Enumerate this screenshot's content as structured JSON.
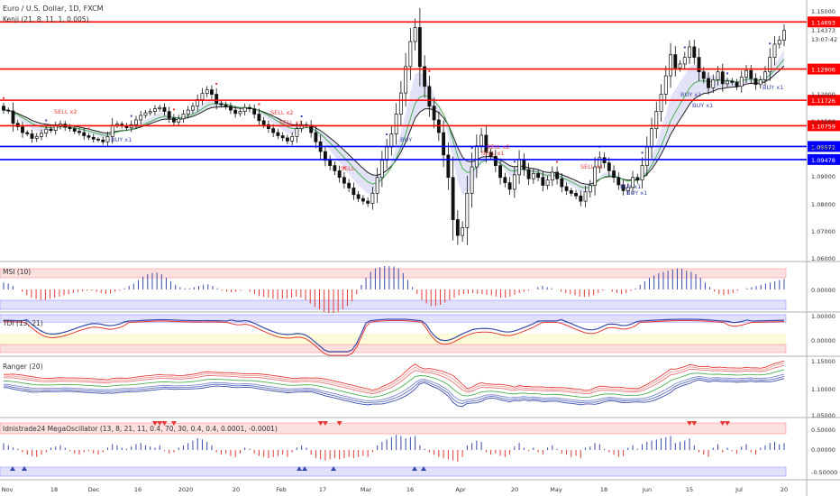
{
  "header": {
    "title": "Euro / U.S. Dollar, 1D, FXCM",
    "indicator": "Kenji (21, 8, 11, 1, 0.005)"
  },
  "price_axis": {
    "labels": [
      "1.15000",
      "1.14373",
      "13:07:42",
      "1.12000",
      "1.11500",
      "1.10000",
      "1.09000",
      "1.08000",
      "1.07000",
      "1.06000"
    ]
  },
  "x_axis": {
    "labels": [
      "Nov",
      "18",
      "Dec",
      "16",
      "2020",
      "20",
      "Feb",
      "17",
      "Mar",
      "16",
      "Apr",
      "20",
      "May",
      "18",
      "Jun",
      "15",
      "Jul",
      "20"
    ]
  },
  "levels": [
    {
      "value": 1.14693,
      "label": "1.14693",
      "color": "#ff0000"
    },
    {
      "value": 1.12906,
      "label": "1.12906",
      "color": "#ff0000"
    },
    {
      "value": 1.11726,
      "label": "1.11726",
      "color": "#ff0000"
    },
    {
      "value": 1.10759,
      "label": "1.10759",
      "color": "#ff0000"
    },
    {
      "value": 1.09972,
      "label": "1.09972",
      "color": "#0000ff"
    },
    {
      "value": 1.09478,
      "label": "1.09478",
      "color": "#0000ff"
    }
  ],
  "signals": [
    {
      "text": "SELL x2",
      "color": "#e53935"
    },
    {
      "text": "BUY x1",
      "color": "#3949ab"
    },
    {
      "text": "SELL x2",
      "color": "#e53935"
    },
    {
      "text": "SELL x1",
      "color": "#e53935"
    },
    {
      "text": "SELL",
      "color": "#e53935"
    },
    {
      "text": "BUY",
      "color": "#3949ab"
    },
    {
      "text": "SELL x2",
      "color": "#e53935"
    },
    {
      "text": "SELL x1",
      "color": "#e53935"
    },
    {
      "text": "SELL x1",
      "color": "#e53935"
    },
    {
      "text": "BUY x1",
      "color": "#3949ab"
    },
    {
      "text": "BUY x1",
      "color": "#3949ab"
    },
    {
      "text": "BUY x1",
      "color": "#3949ab"
    },
    {
      "text": "BUY x1",
      "color": "#3949ab"
    },
    {
      "text": "BUY x1",
      "color": "#3949ab"
    }
  ],
  "panels": {
    "msi": {
      "title": "MSI (10)",
      "zero_label": "0.00000"
    },
    "tdi": {
      "title": "TDI (13, 21)",
      "top_label": "1.00000",
      "zero_label": "0.00000"
    },
    "ranger": {
      "title": "Ranger (20)",
      "labels": [
        "1.15000",
        "1.10000",
        "1.05000"
      ]
    },
    "mega": {
      "title": "Idnistrade24 MegaOscillator (13, 8, 21, 11, 0.4, 70, 30, 0.4, 0.4, 0.0001, -0.0001)",
      "labels": [
        "0.50000",
        "0.00000",
        "-0.50000"
      ]
    }
  },
  "chart_data": {
    "type": "candlestick",
    "title": "Euro / U.S. Dollar, 1D, FXCM",
    "ylim": [
      1.0575,
      1.1525
    ],
    "close": [
      1.1135,
      1.1132,
      1.1085,
      1.1072,
      1.105,
      1.1045,
      1.1028,
      1.1035,
      1.1048,
      1.1063,
      1.1058,
      1.1075,
      1.1082,
      1.107,
      1.1065,
      1.1055,
      1.105,
      1.1038,
      1.1032,
      1.1025,
      1.1022,
      1.1015,
      1.1035,
      1.1078,
      1.1082,
      1.1075,
      1.1068,
      1.108,
      1.1098,
      1.1115,
      1.1125,
      1.113,
      1.114,
      1.1145,
      1.113,
      1.1105,
      1.109,
      1.1102,
      1.112,
      1.1135,
      1.115,
      1.1175,
      1.1198,
      1.1212,
      1.1195,
      1.116,
      1.1155,
      1.115,
      1.1135,
      1.1122,
      1.113,
      1.1145,
      1.114,
      1.112,
      1.1095,
      1.108,
      1.1065,
      1.105,
      1.1038,
      1.103,
      1.1018,
      1.1035,
      1.1065,
      1.108,
      1.1078,
      1.105,
      1.1015,
      1.0978,
      1.0945,
      1.0925,
      1.0905,
      1.088,
      1.0858,
      1.084,
      1.0815,
      1.08,
      1.079,
      1.0782,
      1.082,
      1.088,
      1.0945,
      1.0995,
      1.1045,
      1.112,
      1.12,
      1.13,
      1.1395,
      1.1448,
      1.13,
      1.1225,
      1.115,
      1.1098,
      1.105,
      1.0965,
      1.088,
      1.072,
      1.066,
      1.069,
      1.082,
      1.092,
      1.1,
      1.104,
      1.0975,
      1.096,
      1.0925,
      1.088,
      1.086,
      1.0835,
      1.089,
      1.0948,
      1.091,
      1.0875,
      1.0895,
      1.088,
      1.085,
      1.087,
      1.09,
      1.0875,
      1.0845,
      1.083,
      1.082,
      1.081,
      1.079,
      1.0825,
      1.085,
      1.092,
      1.0955,
      1.0935,
      1.0905,
      1.088,
      1.0852,
      1.083,
      1.0842,
      1.088,
      1.087,
      1.0925,
      1.0995,
      1.1065,
      1.113,
      1.1195,
      1.1265,
      1.1345,
      1.1295,
      1.131,
      1.1335,
      1.1375,
      1.1335,
      1.128,
      1.1255,
      1.122,
      1.125,
      1.128,
      1.1235,
      1.1245,
      1.124,
      1.1225,
      1.126,
      1.1285,
      1.1255,
      1.1232,
      1.125,
      1.128,
      1.1335,
      1.1385,
      1.14,
      1.1437
    ],
    "series": [
      {
        "name": "MSI (10)",
        "values": [
          0.3,
          0.25,
          0.15,
          0,
          -0.1,
          -0.25,
          -0.35,
          -0.4,
          -0.45,
          -0.45,
          -0.4,
          -0.35,
          -0.3,
          -0.25,
          -0.2,
          -0.15,
          -0.1,
          -0.08,
          -0.05,
          -0.05,
          -0.1,
          -0.15,
          -0.2,
          -0.18,
          -0.1,
          -0.05,
          0.05,
          0.15,
          0.25,
          0.4,
          0.55,
          0.65,
          0.7,
          0.72,
          0.65,
          0.5,
          0.35,
          0.2,
          0.1,
          0.05,
          0.05,
          0.1,
          0.15,
          0.2,
          0.22,
          0.15,
          0.05,
          -0.05,
          -0.1,
          -0.12,
          -0.1,
          -0.05,
          0,
          -0.1,
          -0.2,
          -0.28,
          -0.32,
          -0.35,
          -0.4,
          -0.42,
          -0.4,
          -0.38,
          -0.35,
          -0.3,
          -0.35,
          -0.45,
          -0.6,
          -0.75,
          -0.85,
          -0.95,
          -1.0,
          -1.0,
          -0.95,
          -0.85,
          -0.7,
          -0.5,
          -0.2,
          0.2,
          0.5,
          0.75,
          0.9,
          0.95,
          1.0,
          1.0,
          0.98,
          0.9,
          0.7,
          0.4,
          0.1,
          -0.2,
          -0.45,
          -0.6,
          -0.7,
          -0.7,
          -0.65,
          -0.55,
          -0.45,
          -0.35,
          -0.25,
          -0.2,
          -0.18,
          -0.15,
          -0.18,
          -0.2,
          -0.22,
          -0.25,
          -0.3,
          -0.35,
          -0.35,
          -0.3,
          -0.22,
          -0.15,
          -0.1,
          -0.05,
          0,
          0.1,
          0.15,
          0.1,
          0.05,
          0,
          -0.1,
          -0.15,
          -0.2,
          -0.25,
          -0.3,
          -0.32,
          -0.3,
          -0.25,
          -0.15,
          -0.05,
          0,
          -0.1,
          -0.15,
          -0.2,
          -0.15,
          -0.05,
          0.05,
          0.2,
          0.35,
          0.5,
          0.6,
          0.7,
          0.75,
          0.8,
          0.85,
          0.9,
          0.88,
          0.8,
          0.75,
          0.65,
          0.5,
          0.3,
          0.1,
          -0.1,
          -0.2,
          -0.25,
          -0.2,
          -0.15,
          -0.05,
          0,
          0.05,
          0.1,
          0.15,
          0.2,
          0.25,
          0.3,
          0.35,
          0.4,
          0.45
        ]
      },
      {
        "name": "MegaOscillator",
        "values": [
          0.3,
          0.2,
          0.1,
          0.05,
          -0.1,
          -0.2,
          -0.25,
          -0.3,
          -0.2,
          -0.1,
          0.1,
          0.15,
          0.2,
          0.1,
          -0.05,
          -0.15,
          -0.2,
          -0.1,
          -0.05,
          -0.15,
          -0.2,
          -0.1,
          0.1,
          0.25,
          0.2,
          0.1,
          0.05,
          0.15,
          0.25,
          0.3,
          0.2,
          0.15,
          0.1,
          0.2,
          -0.05,
          -0.15,
          -0.1,
          0.1,
          0.2,
          0.3,
          0.4,
          0.5,
          0.45,
          0.35,
          0.2,
          -0.1,
          -0.2,
          -0.15,
          -0.25,
          -0.3,
          -0.15,
          0.1,
          0.05,
          -0.15,
          -0.25,
          -0.3,
          -0.35,
          -0.3,
          -0.25,
          -0.2,
          -0.3,
          -0.1,
          0.1,
          0.2,
          0.1,
          -0.2,
          -0.35,
          -0.4,
          -0.45,
          -0.4,
          -0.35,
          -0.4,
          -0.35,
          -0.3,
          -0.35,
          -0.3,
          -0.25,
          -0.3,
          -0.1,
          0.2,
          0.35,
          0.45,
          0.55,
          0.65,
          0.6,
          0.5,
          0.55,
          0.6,
          0.2,
          0.05,
          -0.1,
          -0.2,
          -0.3,
          -0.35,
          -0.4,
          -0.45,
          -0.5,
          -0.3,
          0.2,
          0.3,
          0.4,
          0.35,
          -0.1,
          -0.2,
          -0.15,
          -0.25,
          -0.3,
          -0.2,
          0.15,
          0.3,
          0.1,
          -0.05,
          0.1,
          -0.1,
          -0.2,
          0.1,
          0.2,
          0.05,
          -0.15,
          -0.2,
          -0.3,
          -0.25,
          -0.35,
          0.1,
          0.15,
          0.3,
          0.25,
          0.05,
          -0.1,
          -0.2,
          -0.3,
          -0.25,
          0.1,
          0.2,
          0.05,
          0.25,
          0.35,
          0.4,
          0.45,
          0.5,
          0.55,
          0.6,
          0.3,
          0.35,
          0.4,
          0.5,
          0.2,
          -0.1,
          -0.2,
          -0.3,
          0.1,
          0.25,
          -0.1,
          0.1,
          -0.05,
          -0.15,
          0.15,
          0.25,
          -0.1,
          -0.2,
          0.1,
          0.2,
          0.3,
          0.35,
          0.25,
          0.3
        ]
      }
    ]
  }
}
